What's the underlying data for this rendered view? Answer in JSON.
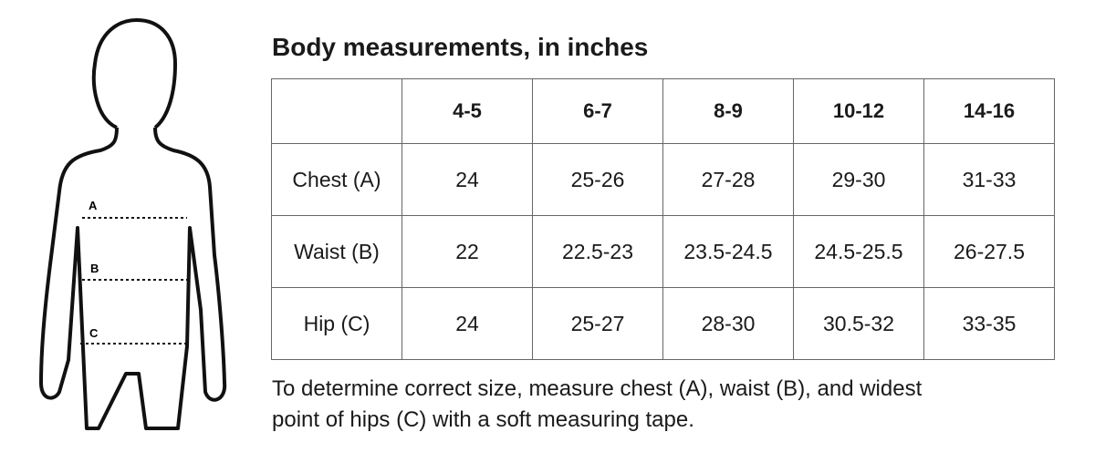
{
  "title": "Body measurements, in inches",
  "figure": {
    "labels": [
      "A",
      "B",
      "C"
    ]
  },
  "table": {
    "columns": [
      "4-5",
      "6-7",
      "8-9",
      "10-12",
      "14-16"
    ],
    "rows": [
      {
        "label": "Chest (A)",
        "values": [
          "24",
          "25-26",
          "27-28",
          "29-30",
          "31-33"
        ]
      },
      {
        "label": "Waist (B)",
        "values": [
          "22",
          "22.5-23",
          "23.5-24.5",
          "24.5-25.5",
          "26-27.5"
        ]
      },
      {
        "label": "Hip (C)",
        "values": [
          "24",
          "25-27",
          "28-30",
          "30.5-32",
          "33-35"
        ]
      }
    ]
  },
  "note": "To determine correct size, measure chest (A), waist (B), and widest point of hips (C) with a soft measuring tape."
}
